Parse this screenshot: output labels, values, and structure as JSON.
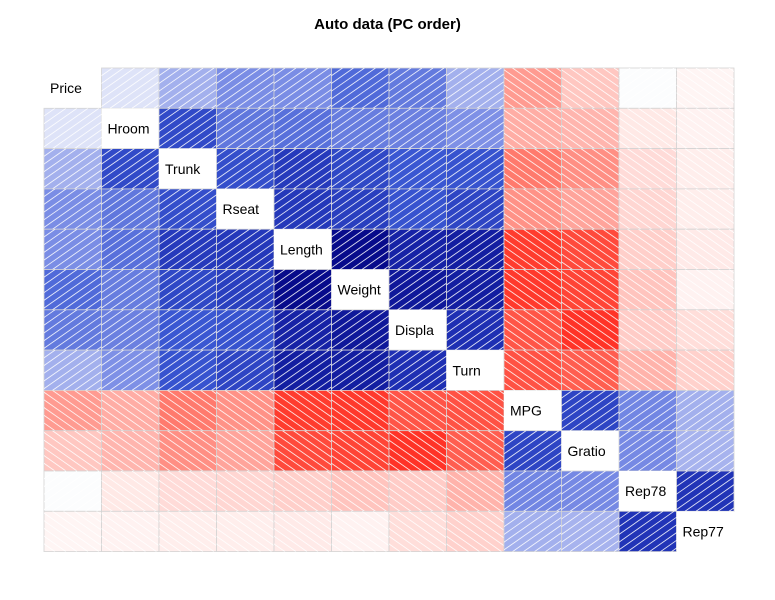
{
  "title": "Auto data (PC order)",
  "chart_data": {
    "type": "heatmap",
    "title": "Auto data (PC order)",
    "variables": [
      "Price",
      "Hroom",
      "Trunk",
      "Rseat",
      "Length",
      "Weight",
      "Displa",
      "Turn",
      "MPG",
      "Gratio",
      "Rep78",
      "Rep77"
    ],
    "matrix": [
      [
        1.0,
        0.12,
        0.31,
        0.43,
        0.43,
        0.54,
        0.49,
        0.31,
        -0.47,
        -0.31,
        0.01,
        -0.07
      ],
      [
        0.12,
        1.0,
        0.66,
        0.5,
        0.52,
        0.48,
        0.47,
        0.42,
        -0.41,
        -0.38,
        -0.16,
        -0.09
      ],
      [
        0.31,
        0.66,
        1.0,
        0.64,
        0.73,
        0.67,
        0.6,
        0.62,
        -0.58,
        -0.51,
        -0.23,
        -0.12
      ],
      [
        0.43,
        0.5,
        0.64,
        1.0,
        0.74,
        0.71,
        0.62,
        0.68,
        -0.5,
        -0.44,
        -0.25,
        -0.12
      ],
      [
        0.43,
        0.52,
        0.73,
        0.74,
        1.0,
        0.95,
        0.84,
        0.86,
        -0.8,
        -0.75,
        -0.28,
        -0.15
      ],
      [
        0.54,
        0.48,
        0.67,
        0.71,
        0.95,
        1.0,
        0.89,
        0.86,
        -0.81,
        -0.77,
        -0.32,
        -0.09
      ],
      [
        0.49,
        0.47,
        0.6,
        0.62,
        0.84,
        0.89,
        1.0,
        0.78,
        -0.71,
        -0.83,
        -0.29,
        -0.22
      ],
      [
        0.31,
        0.42,
        0.62,
        0.68,
        0.86,
        0.86,
        0.78,
        1.0,
        -0.72,
        -0.68,
        -0.39,
        -0.27
      ],
      [
        -0.47,
        -0.41,
        -0.58,
        -0.5,
        -0.8,
        -0.81,
        -0.71,
        -0.72,
        1.0,
        0.68,
        0.45,
        0.31
      ],
      [
        -0.31,
        -0.38,
        -0.51,
        -0.44,
        -0.75,
        -0.77,
        -0.83,
        -0.68,
        0.68,
        1.0,
        0.44,
        0.3
      ],
      [
        0.01,
        -0.16,
        -0.23,
        -0.25,
        -0.28,
        -0.32,
        -0.29,
        -0.39,
        0.45,
        0.44,
        1.0,
        0.76
      ],
      [
        -0.07,
        -0.09,
        -0.12,
        -0.12,
        -0.15,
        -0.09,
        -0.22,
        -0.27,
        0.31,
        0.3,
        0.76,
        1.0
      ]
    ],
    "colors": {
      "positive": "#00007F",
      "negative": "#FF0000",
      "zero": "#FFFFFF",
      "border": "#D3D3D3"
    },
    "shading": "diagonal hatch lines: positive up-right, negative down-right",
    "diagonal": "variable names",
    "legend": "none",
    "grid": true
  }
}
